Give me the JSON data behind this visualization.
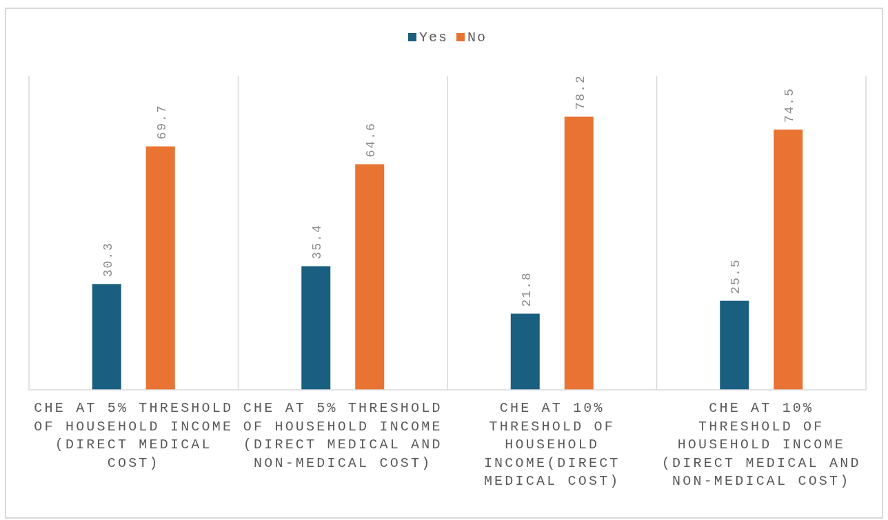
{
  "chart_data": {
    "type": "bar",
    "categories": [
      "CHE AT 5% THRESHOLD OF HOUSEHOLD INCOME (DIRECT MEDICAL COST)",
      "CHE AT 5% THRESHOLD OF HOUSEHOLD INCOME (DIRECT MEDICAL AND NON-MEDICAL COST)",
      "CHE AT 10% THRESHOLD OF HOUSEHOLD INCOME(DIRECT MEDICAL COST)",
      "CHE AT 10% THRESHOLD OF HOUSEHOLD INCOME (DIRECT MEDICAL AND NON-MEDICAL COST)"
    ],
    "series": [
      {
        "name": "Yes",
        "color": "#1a5e80",
        "values": [
          30.3,
          35.4,
          21.8,
          25.5
        ]
      },
      {
        "name": "No",
        "color": "#e87332",
        "values": [
          69.7,
          64.6,
          78.2,
          74.5
        ]
      }
    ],
    "data_labels": true,
    "legend": "top",
    "grid": "x"
  }
}
